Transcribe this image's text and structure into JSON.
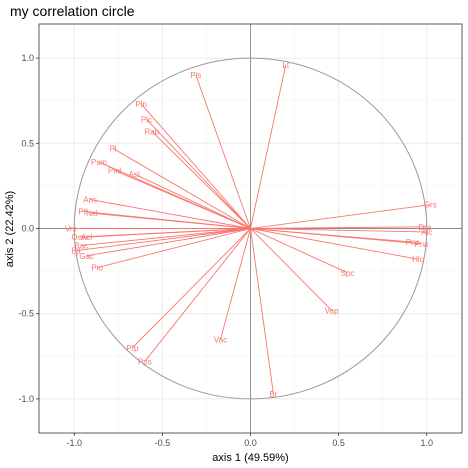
{
  "chart_data": {
    "type": "scatter",
    "subtype": "correlation-circle",
    "title": "my correlation circle",
    "xlabel": "axis 1 (49.59%)",
    "ylabel": "axis 2 (22.42%)",
    "xlim": [
      -1.2,
      1.2
    ],
    "ylim": [
      -1.2,
      1.2
    ],
    "x_ticks": [
      -1.0,
      -0.5,
      0.0,
      0.5,
      1.0
    ],
    "y_ticks": [
      -1.0,
      -0.5,
      0.0,
      0.5,
      1.0
    ],
    "x_tick_labels": [
      "-1.0",
      "-0.5",
      "0.0",
      "0.5",
      "1.0"
    ],
    "y_tick_labels": [
      "-1.0",
      "-0.5",
      "0.0",
      "0.5",
      "1.0"
    ],
    "grid": true,
    "unit_circle": true,
    "color": "#f8766d",
    "circle_color": "#999999",
    "variables": [
      {
        "name": "Lt",
        "x": 0.2,
        "y": 0.96
      },
      {
        "name": "Pls",
        "x": -0.31,
        "y": 0.9
      },
      {
        "name": "Pln",
        "x": -0.62,
        "y": 0.73
      },
      {
        "name": "Plc",
        "x": -0.59,
        "y": 0.64
      },
      {
        "name": "Rab",
        "x": -0.56,
        "y": 0.57
      },
      {
        "name": "Pl",
        "x": -0.78,
        "y": 0.47
      },
      {
        "name": "Psm",
        "x": -0.86,
        "y": 0.39
      },
      {
        "name": "Pml",
        "x": -0.77,
        "y": 0.34
      },
      {
        "name": "Asl",
        "x": -0.66,
        "y": 0.32
      },
      {
        "name": "Ans",
        "x": -0.91,
        "y": 0.17
      },
      {
        "name": "Pfl",
        "x": -0.95,
        "y": 0.1
      },
      {
        "name": "Ncl",
        "x": -0.9,
        "y": 0.09
      },
      {
        "name": "Vrs",
        "x": -1.02,
        "y": 0.0
      },
      {
        "name": "Ocw",
        "x": -0.97,
        "y": -0.05
      },
      {
        "name": "Acl",
        "x": -0.93,
        "y": -0.05
      },
      {
        "name": "Bac",
        "x": -0.96,
        "y": -0.1
      },
      {
        "name": "Bjl",
        "x": -0.99,
        "y": -0.13
      },
      {
        "name": "Gac",
        "x": -0.93,
        "y": -0.16
      },
      {
        "name": "Pio",
        "x": -0.87,
        "y": -0.23
      },
      {
        "name": "Grs",
        "x": 1.02,
        "y": 0.14
      },
      {
        "name": "Dra",
        "x": 0.99,
        "y": 0.01
      },
      {
        "name": "Alc",
        "x": 1.0,
        "y": -0.02
      },
      {
        "name": "Pns",
        "x": 0.92,
        "y": -0.08
      },
      {
        "name": "Prw",
        "x": 0.97,
        "y": -0.09
      },
      {
        "name": "Hlc",
        "x": 0.95,
        "y": -0.18
      },
      {
        "name": "Spc",
        "x": 0.55,
        "y": -0.26
      },
      {
        "name": "Vap",
        "x": 0.46,
        "y": -0.48
      },
      {
        "name": "Vac",
        "x": -0.17,
        "y": -0.65
      },
      {
        "name": "Br",
        "x": 0.13,
        "y": -0.97
      },
      {
        "name": "Pfp",
        "x": -0.67,
        "y": -0.7
      },
      {
        "name": "Pps",
        "x": -0.6,
        "y": -0.78
      }
    ]
  }
}
